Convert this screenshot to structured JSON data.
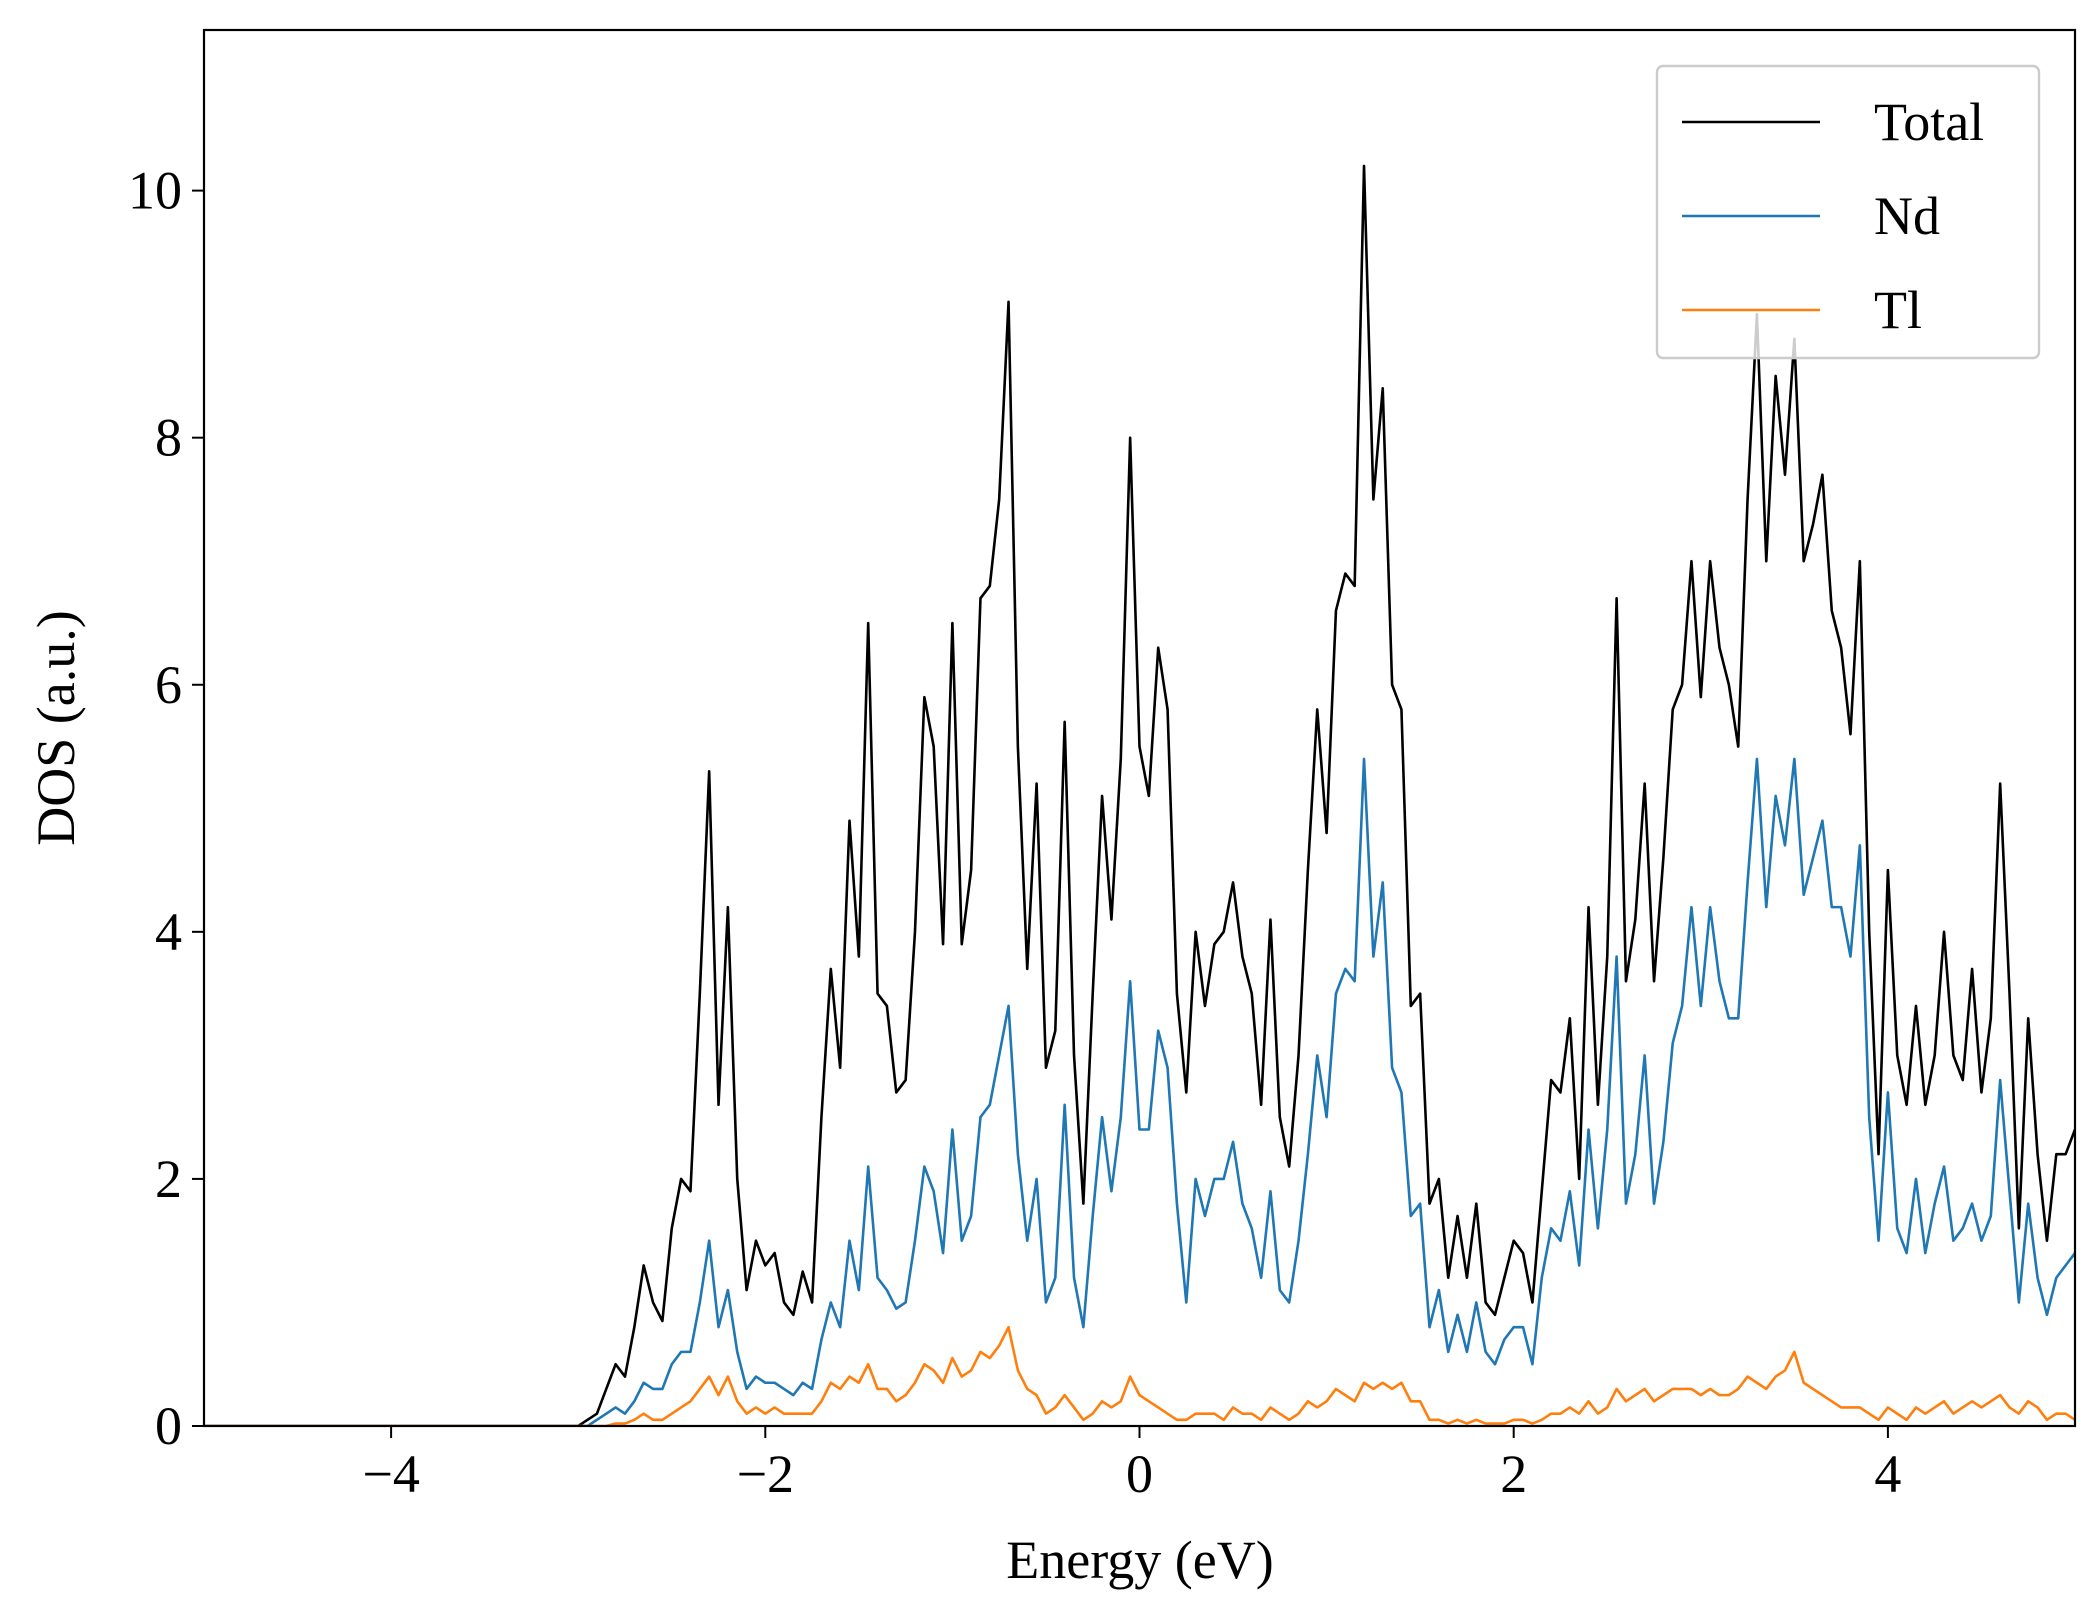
{
  "chart_data": {
    "type": "line",
    "xlabel": "Energy (eV)",
    "ylabel": "DOS (a.u.)",
    "xlim": [
      -5,
      5
    ],
    "ylim": [
      0,
      11.3
    ],
    "xticks": [
      {
        "value": -4,
        "label": "−4"
      },
      {
        "value": -2,
        "label": "−2"
      },
      0,
      2,
      4
    ],
    "yticks": [
      0,
      2,
      4,
      6,
      8,
      10
    ],
    "legend": "upper right",
    "x": [
      -5,
      -3,
      -2.95,
      -2.9,
      -2.85,
      -2.8,
      -2.75,
      -2.7,
      -2.65,
      -2.6,
      -2.55,
      -2.5,
      -2.45,
      -2.4,
      -2.35,
      -2.3,
      -2.25,
      -2.2,
      -2.15,
      -2.1,
      -2.05,
      -2,
      -1.95,
      -1.9,
      -1.85,
      -1.8,
      -1.75,
      -1.7,
      -1.65,
      -1.6,
      -1.55,
      -1.5,
      -1.45,
      -1.4,
      -1.35,
      -1.3,
      -1.25,
      -1.2,
      -1.15,
      -1.1,
      -1.05,
      -1,
      -0.95,
      -0.9,
      -0.85,
      -0.8,
      -0.75,
      -0.7,
      -0.65,
      -0.6,
      -0.55,
      -0.5,
      -0.45,
      -0.4,
      -0.35,
      -0.3,
      -0.25,
      -0.2,
      -0.15,
      -0.1,
      -0.05,
      0,
      0.05,
      0.1,
      0.15,
      0.2,
      0.25,
      0.3,
      0.35,
      0.4,
      0.45,
      0.5,
      0.55,
      0.6,
      0.65,
      0.7,
      0.75,
      0.8,
      0.85,
      0.9,
      0.95,
      1,
      1.05,
      1.1,
      1.15,
      1.2,
      1.25,
      1.3,
      1.35,
      1.4,
      1.45,
      1.5,
      1.55,
      1.6,
      1.65,
      1.7,
      1.75,
      1.8,
      1.85,
      1.9,
      1.95,
      2,
      2.05,
      2.1,
      2.15,
      2.2,
      2.25,
      2.3,
      2.35,
      2.4,
      2.45,
      2.5,
      2.55,
      2.6,
      2.65,
      2.7,
      2.75,
      2.8,
      2.85,
      2.9,
      2.95,
      3,
      3.05,
      3.1,
      3.15,
      3.2,
      3.25,
      3.3,
      3.35,
      3.4,
      3.45,
      3.5,
      3.55,
      3.6,
      3.65,
      3.7,
      3.75,
      3.8,
      3.85,
      3.9,
      3.95,
      4,
      4.05,
      4.1,
      4.15,
      4.2,
      4.25,
      4.3,
      4.35,
      4.4,
      4.45,
      4.5,
      4.55,
      4.6,
      4.65,
      4.7,
      4.75,
      4.8,
      4.85,
      4.9,
      4.95,
      5
    ],
    "series": [
      {
        "name": "Total",
        "color": "#000000",
        "values": [
          0,
          0,
          0.05,
          0.1,
          0.3,
          0.5,
          0.4,
          0.8,
          1.3,
          1.0,
          0.85,
          1.6,
          2.0,
          1.9,
          3.5,
          5.3,
          2.6,
          4.2,
          2.0,
          1.1,
          1.5,
          1.3,
          1.4,
          1.0,
          0.9,
          1.25,
          1.0,
          2.5,
          3.7,
          2.9,
          4.9,
          3.8,
          6.5,
          3.5,
          3.4,
          2.7,
          2.8,
          4.0,
          5.9,
          5.5,
          3.9,
          6.5,
          3.9,
          4.5,
          6.7,
          6.8,
          7.5,
          9.1,
          5.5,
          3.7,
          5.2,
          2.9,
          3.2,
          5.7,
          3.0,
          1.8,
          3.5,
          5.1,
          4.1,
          5.4,
          8.0,
          5.5,
          5.1,
          6.3,
          5.8,
          3.5,
          2.7,
          4.0,
          3.4,
          3.9,
          4.0,
          4.4,
          3.8,
          3.5,
          2.6,
          4.1,
          2.5,
          2.1,
          3.0,
          4.5,
          5.8,
          4.8,
          6.6,
          6.9,
          6.8,
          10.2,
          7.5,
          8.4,
          6.0,
          5.8,
          3.4,
          3.5,
          1.8,
          2.0,
          1.2,
          1.7,
          1.2,
          1.8,
          1.0,
          0.9,
          1.2,
          1.5,
          1.4,
          1.0,
          1.9,
          2.8,
          2.7,
          3.3,
          2.0,
          4.2,
          2.6,
          3.8,
          6.7,
          3.6,
          4.1,
          5.2,
          3.6,
          4.6,
          5.8,
          6.0,
          7.0,
          5.9,
          7.0,
          6.3,
          6.0,
          5.5,
          7.5,
          9.0,
          7.0,
          8.5,
          7.7,
          8.8,
          7.0,
          7.3,
          7.7,
          6.6,
          6.3,
          5.6,
          7.0,
          4.0,
          2.2,
          4.5,
          3.0,
          2.6,
          3.4,
          2.6,
          3.0,
          4.0,
          3.0,
          2.8,
          3.7,
          2.7,
          3.3,
          5.2,
          3.5,
          1.6,
          3.3,
          2.2,
          1.5,
          2.2,
          2.2,
          2.4
        ]
      },
      {
        "name": "Nd",
        "color": "#1f77b4",
        "values": [
          0,
          0,
          0.0,
          0.05,
          0.1,
          0.15,
          0.1,
          0.2,
          0.35,
          0.3,
          0.3,
          0.5,
          0.6,
          0.6,
          1.0,
          1.5,
          0.8,
          1.1,
          0.6,
          0.3,
          0.4,
          0.35,
          0.35,
          0.3,
          0.25,
          0.35,
          0.3,
          0.7,
          1.0,
          0.8,
          1.5,
          1.1,
          2.1,
          1.2,
          1.1,
          0.95,
          1.0,
          1.5,
          2.1,
          1.9,
          1.4,
          2.4,
          1.5,
          1.7,
          2.5,
          2.6,
          3.0,
          3.4,
          2.2,
          1.5,
          2.0,
          1.0,
          1.2,
          2.6,
          1.2,
          0.8,
          1.7,
          2.5,
          1.9,
          2.5,
          3.6,
          2.4,
          2.4,
          3.2,
          2.9,
          1.8,
          1.0,
          2.0,
          1.7,
          2.0,
          2.0,
          2.3,
          1.8,
          1.6,
          1.2,
          1.9,
          1.1,
          1.0,
          1.5,
          2.2,
          3.0,
          2.5,
          3.5,
          3.7,
          3.6,
          5.4,
          3.8,
          4.4,
          2.9,
          2.7,
          1.7,
          1.8,
          0.8,
          1.1,
          0.6,
          0.9,
          0.6,
          1.0,
          0.6,
          0.5,
          0.7,
          0.8,
          0.8,
          0.5,
          1.2,
          1.6,
          1.5,
          1.9,
          1.3,
          2.4,
          1.6,
          2.4,
          3.8,
          1.8,
          2.2,
          3.0,
          1.8,
          2.3,
          3.1,
          3.4,
          4.2,
          3.4,
          4.2,
          3.6,
          3.3,
          3.3,
          4.4,
          5.4,
          4.2,
          5.1,
          4.7,
          5.4,
          4.3,
          4.6,
          4.9,
          4.2,
          4.2,
          3.8,
          4.7,
          2.5,
          1.5,
          2.7,
          1.6,
          1.4,
          2.0,
          1.4,
          1.8,
          2.1,
          1.5,
          1.6,
          1.8,
          1.5,
          1.7,
          2.8,
          1.9,
          1.0,
          1.8,
          1.2,
          0.9,
          1.2,
          1.3,
          1.4
        ]
      },
      {
        "name": "Tl",
        "color": "#ff7f0e",
        "values": [
          0,
          0,
          0,
          0,
          0,
          0.02,
          0.02,
          0.05,
          0.1,
          0.05,
          0.05,
          0.1,
          0.15,
          0.2,
          0.3,
          0.4,
          0.25,
          0.4,
          0.2,
          0.1,
          0.15,
          0.1,
          0.15,
          0.1,
          0.1,
          0.1,
          0.1,
          0.2,
          0.35,
          0.3,
          0.4,
          0.35,
          0.5,
          0.3,
          0.3,
          0.2,
          0.25,
          0.35,
          0.5,
          0.45,
          0.35,
          0.55,
          0.4,
          0.45,
          0.6,
          0.55,
          0.65,
          0.8,
          0.45,
          0.3,
          0.25,
          0.1,
          0.15,
          0.25,
          0.15,
          0.05,
          0.1,
          0.2,
          0.15,
          0.2,
          0.4,
          0.25,
          0.2,
          0.15,
          0.1,
          0.05,
          0.05,
          0.1,
          0.1,
          0.1,
          0.05,
          0.15,
          0.1,
          0.1,
          0.05,
          0.15,
          0.1,
          0.05,
          0.1,
          0.2,
          0.15,
          0.2,
          0.3,
          0.25,
          0.2,
          0.35,
          0.3,
          0.35,
          0.3,
          0.35,
          0.2,
          0.2,
          0.05,
          0.05,
          0.02,
          0.05,
          0.02,
          0.05,
          0.02,
          0.02,
          0.02,
          0.05,
          0.05,
          0.02,
          0.05,
          0.1,
          0.1,
          0.15,
          0.1,
          0.2,
          0.1,
          0.15,
          0.3,
          0.2,
          0.25,
          0.3,
          0.2,
          0.25,
          0.3,
          0.3,
          0.3,
          0.25,
          0.3,
          0.25,
          0.25,
          0.3,
          0.4,
          0.35,
          0.3,
          0.4,
          0.45,
          0.6,
          0.35,
          0.3,
          0.25,
          0.2,
          0.15,
          0.15,
          0.15,
          0.1,
          0.05,
          0.15,
          0.1,
          0.05,
          0.15,
          0.1,
          0.15,
          0.2,
          0.1,
          0.15,
          0.2,
          0.15,
          0.2,
          0.25,
          0.15,
          0.1,
          0.2,
          0.15,
          0.05,
          0.1,
          0.1,
          0.05
        ]
      }
    ]
  }
}
